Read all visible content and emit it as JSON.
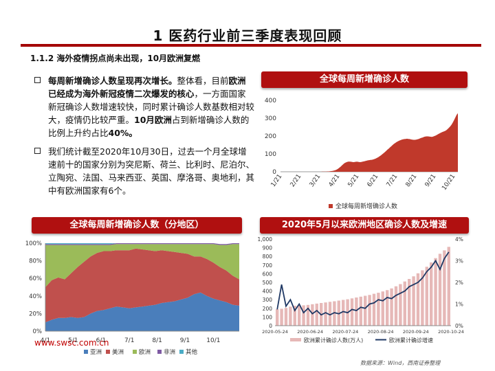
{
  "title": "1   医药行业前三季度表现回顾",
  "subtitle": "1.1.2 海外疫情拐点尚未出现，10月欧洲复燃",
  "bullets": [
    {
      "p1": "每周新增确诊人数呈现再次增长。",
      "p2": "整体看，目前",
      "p3": "欧洲已经成为海外新冠疫情二次爆发的核心",
      "p4": "，一方面国家新冠确诊人数增速较快，同时累计确诊人数基数相对较大，疫情仍比较严重。",
      "p5": "10月欧洲",
      "p6": "占到新增确诊人数的比例上升约占比",
      "p7": "40%。"
    },
    {
      "text": "我们统计截至2020年10月30日，过去一个月全球增速前十的国家分别为突尼斯、荷兰、比利时、尼泊尔、立陶宛、法国、马来西亚、英国、摩洛哥、奥地利，其中有欧洲国家有6个。"
    }
  ],
  "chart1": {
    "header": "全球每周新增确诊人数",
    "legend": "全球每周新增确诊人数",
    "color": "#c0392b"
  },
  "chart2": {
    "header": "全球每周新增确诊人数（分地区）",
    "legend": [
      "亚洲",
      "美洲",
      "欧洲",
      "非洲",
      "其他"
    ],
    "colors": [
      "#4a7ebb",
      "#c0504d",
      "#9bbb59",
      "#7e5aa3",
      "#4bacc6"
    ]
  },
  "chart3": {
    "header": "2020年5月以来欧洲地区确诊人数及增速",
    "legend": [
      "欧洲累计确诊人数(万人)",
      "欧洲累计确诊增速"
    ],
    "colors": [
      "#e6b8b7",
      "#1f3864"
    ]
  },
  "chart_data": [
    {
      "type": "area",
      "title": "全球每周新增确诊人数",
      "x_ticks": [
        "1/21",
        "2/21",
        "3/21",
        "4/21",
        "5/21",
        "6/21",
        "7/21",
        "8/21",
        "9/21",
        "10/21"
      ],
      "y_ticks": [
        0,
        100,
        200,
        300,
        400
      ],
      "ylim": [
        0,
        400
      ],
      "series": [
        {
          "name": "全球每周新增确诊人数",
          "values": [
            0,
            0,
            0,
            0,
            0,
            0,
            0,
            0,
            0,
            0,
            0,
            0,
            0,
            0,
            0,
            0,
            0,
            0,
            0,
            0,
            0,
            0,
            0,
            0,
            0,
            0,
            0,
            0,
            0,
            0,
            0,
            0,
            1,
            1,
            1,
            1,
            2,
            2,
            3,
            4,
            5,
            7,
            9,
            12,
            16,
            22,
            28,
            35,
            42,
            48,
            52,
            55,
            57,
            57,
            56,
            55,
            54,
            55,
            56,
            56,
            55,
            54,
            55,
            57,
            58,
            60,
            62,
            64,
            65,
            66,
            67,
            69,
            71,
            74,
            78,
            82,
            87,
            92,
            98,
            104,
            110,
            117,
            124,
            130,
            137,
            143,
            150,
            156,
            161,
            166,
            170,
            174,
            177,
            180,
            182,
            183,
            184,
            185,
            184,
            183,
            181,
            180,
            179,
            179,
            180,
            182,
            184,
            187,
            190,
            192,
            195,
            197,
            198,
            198,
            197,
            196,
            195,
            197,
            200,
            203,
            207,
            211,
            215,
            219,
            222,
            225,
            228,
            232,
            238,
            245,
            253,
            262,
            274,
            288,
            303,
            318,
            328
          ]
        }
      ]
    },
    {
      "type": "area",
      "stacked": true,
      "percent": true,
      "title": "全球每周新增确诊人数（分地区）",
      "x_ticks": [
        "4/1",
        "5/1",
        "6/1",
        "7/1",
        "8/1",
        "9/1",
        "10/1"
      ],
      "y_ticks": [
        "0%",
        "20%",
        "40%",
        "60%",
        "80%",
        "100%"
      ],
      "ylim": [
        0,
        100
      ],
      "series": [
        {
          "name": "亚洲",
          "values": [
            10,
            13,
            15,
            15,
            16,
            15,
            16,
            20,
            23,
            24,
            26,
            28,
            27,
            26,
            27,
            28,
            29,
            30,
            32,
            33,
            34,
            36,
            38,
            42,
            44,
            40,
            37,
            35,
            33,
            30,
            29
          ]
        },
        {
          "name": "美洲",
          "values": [
            40,
            45,
            46,
            44,
            50,
            58,
            63,
            65,
            66,
            67,
            65,
            64,
            65,
            66,
            67,
            65,
            63,
            61,
            60,
            58,
            56,
            53,
            50,
            43,
            41,
            42,
            41,
            38,
            36,
            33,
            30
          ]
        },
        {
          "name": "欧洲",
          "values": [
            48,
            40,
            37,
            39,
            32,
            25,
            19,
            13,
            9,
            7,
            7,
            7,
            7,
            7,
            5,
            6,
            7,
            8,
            7,
            8,
            9,
            10,
            11,
            14,
            14,
            17,
            21,
            25,
            29,
            36,
            40
          ]
        },
        {
          "name": "非洲",
          "values": [
            1,
            1,
            1,
            1,
            1,
            1,
            1,
            1,
            1,
            1,
            1,
            1,
            1,
            1,
            1,
            1,
            1,
            1,
            1,
            1,
            1,
            1,
            1,
            1,
            1,
            1,
            1,
            1,
            1,
            1,
            1
          ]
        },
        {
          "name": "其他",
          "values": [
            1,
            1,
            1,
            1,
            1,
            1,
            1,
            1,
            1,
            1,
            1,
            0,
            0,
            0,
            0,
            0,
            0,
            0,
            0,
            0,
            0,
            0,
            0,
            0,
            0,
            0,
            0,
            0,
            0,
            0,
            0
          ]
        }
      ]
    },
    {
      "type": "bar+line",
      "title": "2020年5月以来欧洲地区确诊人数及增速",
      "x_ticks": [
        "2020-05-24",
        "2020-06-24",
        "2020-07-24",
        "2020-08-24",
        "2020-09-24",
        "2020-10-24"
      ],
      "y_ticks_left": [
        "0",
        "100",
        "200",
        "300",
        "400",
        "500",
        "600",
        "700",
        "800",
        "900",
        "1,000"
      ],
      "y_ticks_right": [
        "0%",
        "1%",
        "2%",
        "3%",
        "4%"
      ],
      "ylim_left": [
        0,
        1000
      ],
      "ylim_right": [
        0,
        4
      ],
      "series": [
        {
          "name": "欧洲累计确诊人数(万人)",
          "axis": "left",
          "type": "bar",
          "values": [
            190,
            195,
            205,
            220,
            230,
            240,
            235,
            240,
            248,
            255,
            262,
            268,
            275,
            282,
            290,
            298,
            305,
            315,
            325,
            335,
            345,
            355,
            368,
            380,
            395,
            410,
            430,
            455,
            480,
            510,
            540,
            570,
            605,
            640,
            680,
            730,
            780,
            830,
            870,
            910
          ]
        },
        {
          "name": "欧洲累计确诊增速",
          "axis": "right",
          "type": "line",
          "values": [
            0.75,
            1.9,
            0.9,
            1.2,
            0.7,
            1.0,
            0.6,
            0.8,
            0.55,
            0.7,
            0.5,
            0.6,
            0.5,
            0.6,
            0.55,
            0.65,
            0.6,
            0.75,
            0.7,
            0.85,
            0.8,
            1.0,
            1.05,
            1.2,
            1.15,
            1.3,
            1.25,
            1.4,
            1.5,
            1.6,
            1.8,
            1.9,
            2.0,
            2.2,
            2.5,
            2.7,
            3.0,
            2.6,
            3.1,
            3.4
          ]
        }
      ]
    }
  ],
  "logo": "www.swsc.com.cn",
  "source": "数据来源：Wind，西南证券整理"
}
